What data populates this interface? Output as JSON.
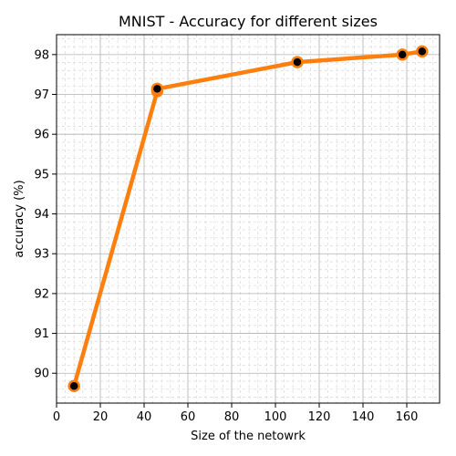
{
  "chart_data": {
    "type": "line",
    "title": "MNIST -  Accuracy for different sizes",
    "xlabel": "Size of the netowrk",
    "ylabel": "accuracy (%)",
    "xlim": [
      0,
      175
    ],
    "ylim": [
      89.25,
      98.5
    ],
    "xticks": [
      0,
      20,
      40,
      60,
      80,
      100,
      120,
      140,
      160
    ],
    "yticks": [
      90,
      91,
      92,
      93,
      94,
      95,
      96,
      97,
      98
    ],
    "grid": true,
    "minor_grid": true,
    "series": [
      {
        "x": [
          8,
          46,
          46,
          110,
          158,
          167
        ],
        "y": [
          89.68,
          97.08,
          97.14,
          97.81,
          98.0,
          98.08
        ],
        "color": "#ff7f0e",
        "marker_face": "#000000",
        "marker_edge": "#ff7f0e"
      }
    ]
  }
}
